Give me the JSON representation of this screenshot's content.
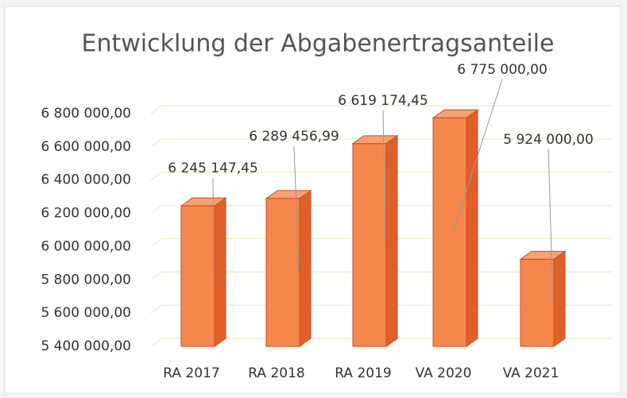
{
  "chart_data": {
    "type": "bar3d",
    "title": "Entwicklung der Abgabenertragsanteile",
    "categories": [
      "RA 2017",
      "RA 2018",
      "RA 2019",
      "VA 2020",
      "VA 2021"
    ],
    "values": [
      6245147.45,
      6289456.99,
      6619174.45,
      6775000,
      5924000
    ],
    "value_labels": [
      "6 245 147,45",
      "6 289 456,99",
      "6 619 174,45",
      "6 775 000,00",
      "5 924 000,00"
    ],
    "color": "#f5874c",
    "ylim": [
      5400000,
      6800000
    ],
    "yticks": [
      {
        "value": 5400000,
        "label": "5 400 000,00"
      },
      {
        "value": 5600000,
        "label": "5 600 000,00"
      },
      {
        "value": 5800000,
        "label": "5 800 000,00"
      },
      {
        "value": 6000000,
        "label": "6 000 000,00"
      },
      {
        "value": 6200000,
        "label": "6 200 000,00"
      },
      {
        "value": 6400000,
        "label": "6 400 000,00"
      },
      {
        "value": 6600000,
        "label": "6 600 000,00"
      },
      {
        "value": 6800000,
        "label": "6 800 000,00"
      }
    ],
    "grid": true
  }
}
